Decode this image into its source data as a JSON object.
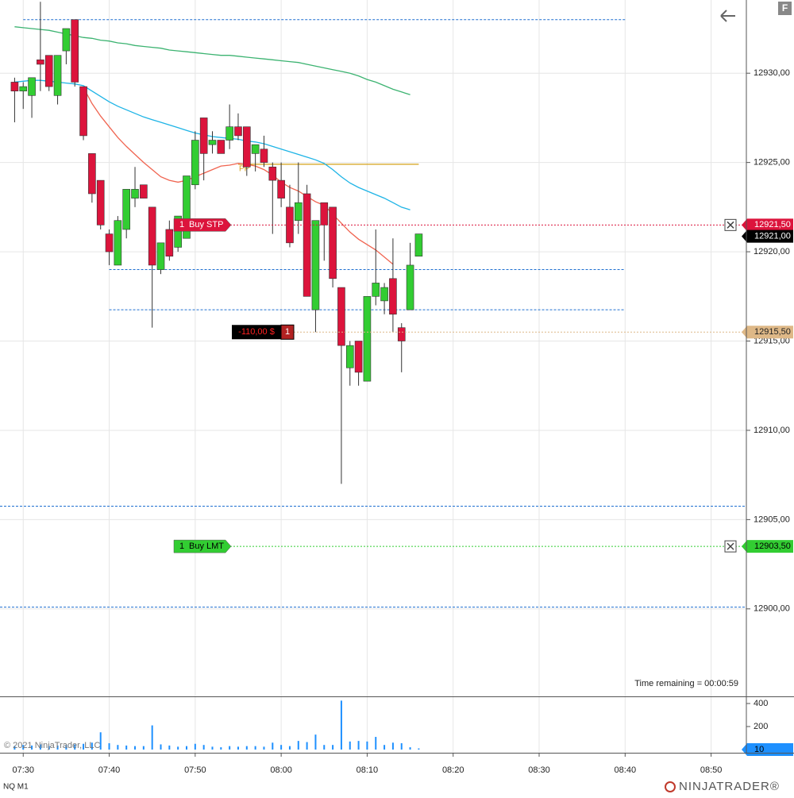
{
  "chart_data": {
    "type": "candlestick",
    "instrument": "NQ M1",
    "copyright": "© 2021 NinjaTrader, LLC",
    "brand": "NINJATRADER®",
    "panel_button": "F",
    "time_remaining": "Time remaining = 00:00:59",
    "x": [
      449,
      450,
      451,
      452,
      453,
      454,
      455,
      456,
      457,
      458,
      459,
      460,
      461,
      462,
      463,
      464,
      465,
      466,
      467,
      468,
      469,
      470,
      471,
      472,
      473,
      474,
      475,
      476,
      477,
      478,
      479,
      480,
      481,
      482,
      483,
      484,
      485,
      486,
      487,
      488,
      489,
      490,
      491,
      492,
      493,
      494,
      495,
      496
    ],
    "open": [
      12929.5,
      12929.0,
      12928.75,
      12930.75,
      12931.0,
      12928.75,
      12931.25,
      12933.0,
      12929.25,
      12925.5,
      12924.0,
      12921.0,
      12919.25,
      12921.25,
      12923.0,
      12923.75,
      12922.5,
      12919.0,
      12921.25,
      12920.25,
      12920.75,
      12923.75,
      12927.5,
      12926.0,
      12926.25,
      12926.25,
      12927.0,
      12927.0,
      12925.5,
      12925.75,
      12924.75,
      12924.0,
      12922.5,
      12921.75,
      12923.25,
      12916.75,
      12922.75,
      12922.5,
      12918.0,
      12913.5,
      12915.0,
      12912.75,
      12917.5,
      12917.25,
      12918.5,
      12915.75,
      12916.75,
      12919.75
    ],
    "high": [
      12929.75,
      12929.5,
      12929.75,
      12934.0,
      12931.0,
      12931.0,
      12932.5,
      12933.0,
      12929.25,
      12925.5,
      12924.0,
      12921.25,
      12922.0,
      12923.5,
      12924.75,
      12923.75,
      12922.5,
      12920.5,
      12921.75,
      12922.0,
      12924.25,
      12926.75,
      12927.5,
      12926.75,
      12926.25,
      12928.25,
      12927.75,
      12927.0,
      12926.0,
      12926.5,
      12925.0,
      12925.0,
      12923.75,
      12925.0,
      12923.75,
      12921.75,
      12922.75,
      12922.5,
      12918.0,
      12915.0,
      12915.0,
      12917.5,
      12921.25,
      12918.25,
      12920.75,
      12916.0,
      12920.5,
      12921.0
    ],
    "low": [
      12927.25,
      12928.0,
      12927.5,
      12929.0,
      12929.0,
      12928.25,
      12930.5,
      12929.25,
      12926.25,
      12922.75,
      12921.25,
      12919.25,
      12919.25,
      12920.75,
      12922.5,
      12923.0,
      12915.75,
      12918.75,
      12919.5,
      12920.0,
      12920.75,
      12923.5,
      12924.0,
      12925.5,
      12925.5,
      12925.75,
      12926.25,
      12924.25,
      12924.5,
      12924.75,
      12921.0,
      12922.5,
      12920.25,
      12921.0,
      12917.5,
      12915.5,
      12919.5,
      12918.0,
      12907.0,
      12912.5,
      12912.5,
      12912.75,
      12917.0,
      12916.5,
      12915.5,
      12913.25,
      12916.75,
      12919.75
    ],
    "close": [
      12929.0,
      12929.25,
      12929.75,
      12930.5,
      12929.25,
      12931.0,
      12932.5,
      12929.5,
      12926.5,
      12923.25,
      12921.5,
      12920.0,
      12921.75,
      12923.5,
      12923.5,
      12923.0,
      12919.25,
      12920.5,
      12919.75,
      12922.0,
      12924.25,
      12926.25,
      12925.5,
      12926.25,
      12925.5,
      12927.0,
      12926.5,
      12924.75,
      12926.0,
      12925.0,
      12924.0,
      12923.0,
      12920.5,
      12922.75,
      12917.5,
      12921.75,
      12921.5,
      12918.5,
      12914.75,
      12914.75,
      12913.25,
      12917.5,
      12918.25,
      12918.0,
      12916.5,
      12915.0,
      12919.25,
      12921.0
    ],
    "up_color": "#32cd32",
    "down_color": "#dc143c",
    "series": [
      {
        "color": "#3cb371",
        "values": [
          12932.6,
          12932.55,
          12932.5,
          12932.45,
          12932.4,
          12932.3,
          12932.2,
          12932.1,
          12932.0,
          12931.95,
          12931.85,
          12931.8,
          12931.7,
          12931.65,
          12931.55,
          12931.5,
          12931.45,
          12931.4,
          12931.3,
          12931.25,
          12931.2,
          12931.15,
          12931.1,
          12931.05,
          12931.0,
          12931.0,
          12930.95,
          12930.9,
          12930.85,
          12930.8,
          12930.75,
          12930.7,
          12930.65,
          12930.6,
          12930.5,
          12930.4,
          12930.3,
          12930.2,
          12930.1,
          12930.0,
          12929.85,
          12929.65,
          12929.5,
          12929.3,
          12929.1,
          12928.95,
          12928.8,
          null
        ]
      },
      {
        "color": "#1eb4e6",
        "values": [
          12929.5,
          12929.55,
          12929.6,
          12929.6,
          12929.55,
          12929.5,
          12929.45,
          12929.4,
          12929.3,
          12929.0,
          12928.7,
          12928.4,
          12928.15,
          12927.95,
          12927.75,
          12927.55,
          12927.4,
          12927.25,
          12927.1,
          12926.95,
          12926.8,
          12926.65,
          12926.55,
          12926.45,
          12926.4,
          12926.35,
          12926.3,
          12926.2,
          12926.15,
          12926.05,
          12925.9,
          12925.75,
          12925.6,
          12925.45,
          12925.3,
          12925.15,
          12924.95,
          12924.6,
          12924.2,
          12923.85,
          12923.6,
          12923.4,
          12923.2,
          12923.0,
          12922.75,
          12922.5,
          12922.35,
          null
        ]
      },
      {
        "color": "#f06450",
        "values": [
          null,
          null,
          null,
          null,
          null,
          null,
          null,
          null,
          12929.2,
          12928.3,
          12927.6,
          12927.0,
          12926.4,
          12925.9,
          12925.45,
          12925.0,
          12924.6,
          12924.2,
          12924.0,
          12923.9,
          12924.0,
          12924.2,
          12924.4,
          12924.6,
          12924.8,
          12924.85,
          12924.95,
          12924.9,
          12924.8,
          12924.6,
          12924.3,
          12923.9,
          12923.6,
          12923.4,
          12923.1,
          12922.8,
          12922.6,
          12922.1,
          12921.6,
          12921.1,
          12920.7,
          12920.4,
          12920.1,
          12919.7,
          12919.3,
          null,
          null,
          null
        ]
      }
    ],
    "volume": [
      30,
      40,
      35,
      45,
      30,
      35,
      40,
      45,
      50,
      60,
      150,
      55,
      40,
      35,
      30,
      30,
      210,
      45,
      35,
      25,
      30,
      50,
      40,
      25,
      20,
      30,
      25,
      30,
      30,
      25,
      60,
      40,
      30,
      75,
      65,
      130,
      40,
      40,
      425,
      70,
      75,
      70,
      110,
      40,
      60,
      55,
      20,
      10
    ],
    "volume_color": "#1e90ff",
    "volume_ylim": [
      -27.6,
      462
    ],
    "volume_yticks": [
      200,
      400
    ],
    "xlim": [
      447.3,
      534.1
    ],
    "xticks": [
      {
        "value": 450,
        "label": "07:30"
      },
      {
        "value": 460,
        "label": "07:40"
      },
      {
        "value": 470,
        "label": "07:50"
      },
      {
        "value": 480,
        "label": "08:00"
      },
      {
        "value": 490,
        "label": "08:10"
      },
      {
        "value": 500,
        "label": "08:20"
      },
      {
        "value": 510,
        "label": "08:30"
      },
      {
        "value": 520,
        "label": "08:40"
      },
      {
        "value": 530,
        "label": "08:50"
      }
    ],
    "ylim": [
      12895.1,
      12934.1
    ],
    "yticks": [
      {
        "value": 12900,
        "label": "12900,00"
      },
      {
        "value": 12905,
        "label": "12905,00"
      },
      {
        "value": 12910,
        "label": "12910,00"
      },
      {
        "value": 12915,
        "label": "12915,00"
      },
      {
        "value": 12920,
        "label": "12920,00"
      },
      {
        "value": 12925,
        "label": "12925,00"
      },
      {
        "value": 12930,
        "label": "12930,00"
      }
    ],
    "grid": true,
    "levels": [
      {
        "price": 12933.0,
        "start": 450,
        "end": 520,
        "color": "#1e6fd0"
      },
      {
        "price": 12919.0,
        "start": 460,
        "end": 520,
        "color": "#1e6fd0"
      },
      {
        "price": 12916.75,
        "start": 460,
        "end": 520,
        "color": "#1e6fd0"
      },
      {
        "price": 12905.75,
        "color": "#1e6fd0"
      },
      {
        "price": 12900.1,
        "color": "#1e6fd0"
      }
    ],
    "pivot": {
      "label": "PP",
      "price": 12924.9,
      "start": 475,
      "end": 496,
      "color": "#d4a017"
    },
    "orders": [
      {
        "qty": 1,
        "action": "Buy STP",
        "price": 12921.5,
        "price_label": "12921,50",
        "color": "#dc143c"
      },
      {
        "qty": 1,
        "action": "Buy LMT",
        "price": 12903.5,
        "price_label": "12903,50",
        "color": "#32cd32"
      }
    ],
    "position": {
      "qty": 1,
      "pnl": -110,
      "pnl_label": "-110,00 $",
      "price": 12915.5,
      "price_label": "12915,50",
      "color": "#deb887"
    },
    "last_price": {
      "value": 12921,
      "label": "12921,00"
    }
  }
}
